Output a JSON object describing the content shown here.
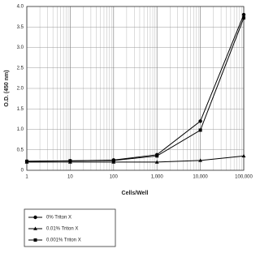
{
  "chart_data": {
    "type": "line",
    "x_label": "Cells/Well",
    "y_label": "O.D. (450 nm)",
    "x": [
      1,
      10,
      100,
      1000,
      10000,
      100000
    ],
    "x_log": true,
    "grid": true,
    "xlim": [
      1,
      100000
    ],
    "xticks": [
      1,
      10,
      100,
      {
        "value": 1000,
        "label": "1,000"
      },
      {
        "value": 10000,
        "label": "10,000"
      },
      {
        "value": 100000,
        "label": "100,000"
      }
    ],
    "ylim": [
      0,
      4
    ],
    "yticks": [
      0,
      0.5,
      {
        "value": 1,
        "label": "1.0"
      },
      1.5,
      {
        "value": 2,
        "label": "2.0"
      },
      2.5,
      {
        "value": 3,
        "label": "3.0"
      },
      3.5,
      {
        "value": 4,
        "label": "4.0"
      }
    ],
    "series": [
      {
        "name": "0% Triton X",
        "color": "#000000",
        "marker": "circle",
        "values": [
          0.22,
          0.23,
          0.25,
          0.38,
          1.2,
          3.8
        ]
      },
      {
        "name": "0.01% Triton X",
        "color": "#000000",
        "marker": "triangle",
        "values": [
          0.2,
          0.2,
          0.2,
          0.2,
          0.24,
          0.35
        ]
      },
      {
        "name": "0.001% Triton X",
        "color": "#000000",
        "marker": "square",
        "values": [
          0.22,
          0.23,
          0.24,
          0.35,
          0.98,
          3.72
        ]
      }
    ]
  }
}
